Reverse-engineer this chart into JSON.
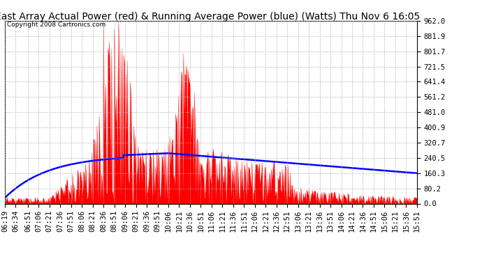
{
  "title": "East Array Actual Power (red) & Running Average Power (blue) (Watts) Thu Nov 6 16:05",
  "copyright": "Copyright 2008 Cartronics.com",
  "ymax": 962.0,
  "ymin": 0.0,
  "yticks": [
    0.0,
    80.2,
    160.3,
    240.5,
    320.7,
    400.9,
    481.0,
    561.2,
    641.4,
    721.5,
    801.7,
    881.9,
    962.0
  ],
  "xtick_labels": [
    "06:19",
    "06:34",
    "06:51",
    "07:06",
    "07:21",
    "07:36",
    "07:51",
    "08:06",
    "08:21",
    "08:36",
    "08:51",
    "09:06",
    "09:21",
    "09:36",
    "09:51",
    "10:06",
    "10:21",
    "10:36",
    "10:51",
    "11:06",
    "11:21",
    "11:36",
    "11:51",
    "12:06",
    "12:21",
    "12:36",
    "12:51",
    "13:06",
    "13:21",
    "13:36",
    "13:51",
    "14:06",
    "14:21",
    "14:36",
    "14:51",
    "15:06",
    "15:21",
    "15:36",
    "15:51"
  ],
  "bg_color": "#ffffff",
  "plot_bg_color": "#ffffff",
  "grid_color": "#aaaaaa",
  "red_color": "#ff0000",
  "blue_color": "#0000ff",
  "title_fontsize": 10,
  "tick_fontsize": 7.5,
  "copyright_fontsize": 6.5
}
